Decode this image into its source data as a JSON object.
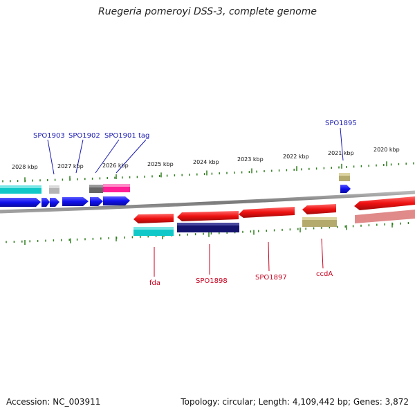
{
  "title": "Ruegeria pomeroyi DSS-3, complete genome",
  "footer": {
    "accession": "Accession: NC_003911",
    "summary": "Topology: circular; Length: 4,109,442 bp; Genes: 3,872"
  },
  "colors": {
    "forward_label": "#1a1ab4",
    "reverse_label": "#c8001e",
    "tick": "#2f7d1e",
    "backbone": "#8a8a8a"
  },
  "tick_labels": [
    "2028 kbp",
    "2027 kbp",
    "2026 kbp",
    "2025 kbp",
    "2024 kbp",
    "2023 kbp",
    "2022 kbp",
    "2021 kbp",
    "2020 kbp"
  ],
  "forward_genes": [
    {
      "label": "SPO1903",
      "color": "#1010ee",
      "cog_color": "#b4b4b4"
    },
    {
      "label": "SPO1902",
      "color": "#1010ee",
      "cog_color": ""
    },
    {
      "label": "SPO1901",
      "color": "#1010ee",
      "cog_color": "#666666"
    },
    {
      "label": "tag",
      "color": "#1010ee",
      "cog_color": "#ff1e96"
    },
    {
      "label": "SPO1895",
      "color": "#1010ee",
      "cog_color": "#b4aa6e"
    }
  ],
  "reverse_genes": [
    {
      "label": "fda",
      "color": "#ee1010",
      "cog_color": "#10c8c8"
    },
    {
      "label": "SPO1898",
      "color": "#ee1010",
      "cog_color": "#14146e"
    },
    {
      "label": "SPO1897",
      "color": "#ee1010",
      "cog_color": ""
    },
    {
      "label": "ccdA",
      "color": "#ee1010",
      "cog_color": "#b4aa6e"
    }
  ]
}
